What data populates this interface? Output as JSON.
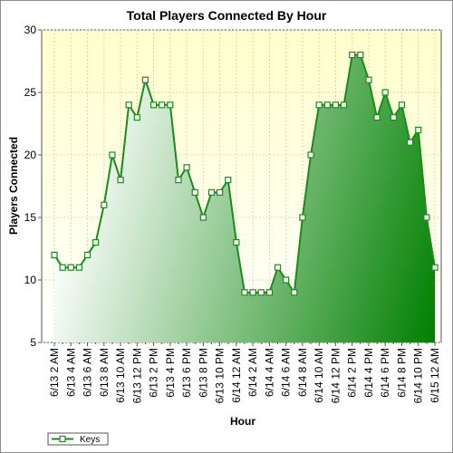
{
  "chart_data": {
    "type": "area",
    "title": "Total Players Connected By Hour",
    "xlabel": "Hour",
    "ylabel": "Players Connected",
    "ylim": [
      5,
      30
    ],
    "yticks": [
      5,
      10,
      15,
      20,
      25,
      30
    ],
    "grid": true,
    "legend_position": "bottom-left",
    "x_tick_labels": [
      "6/13 2 AM",
      "6/13 4 AM",
      "6/13 6 AM",
      "6/13 8 AM",
      "6/13 10 AM",
      "6/13 12 PM",
      "6/13 2 PM",
      "6/13 4 PM",
      "6/13 6 PM",
      "6/13 8 PM",
      "6/13 10 PM",
      "6/14 12 AM",
      "6/14 2 AM",
      "6/14 4 AM",
      "6/14 6 AM",
      "6/14 8 AM",
      "6/14 10 AM",
      "6/14 12 PM",
      "6/14 2 PM",
      "6/14 4 PM",
      "6/14 6 PM",
      "6/14 8 PM",
      "6/14 10 PM",
      "6/15 12 AM"
    ],
    "series": [
      {
        "name": "Keys",
        "color": "#1a8c1a",
        "values": [
          12,
          11,
          11,
          11,
          12,
          13,
          16,
          20,
          18,
          24,
          23,
          26,
          24,
          24,
          24,
          18,
          19,
          17,
          15,
          17,
          17,
          18,
          13,
          9,
          9,
          9,
          9,
          11,
          10,
          9,
          15,
          20,
          24,
          24,
          24,
          24,
          28,
          28,
          26,
          23,
          25,
          23,
          24,
          21,
          22,
          15,
          11
        ]
      }
    ]
  },
  "colors": {
    "plot_background_top": "#ffffcc",
    "plot_background_bottom": "#ffffff",
    "area_light": "#ffffff",
    "area_dark": "#008000",
    "line": "#1a8c1a"
  }
}
